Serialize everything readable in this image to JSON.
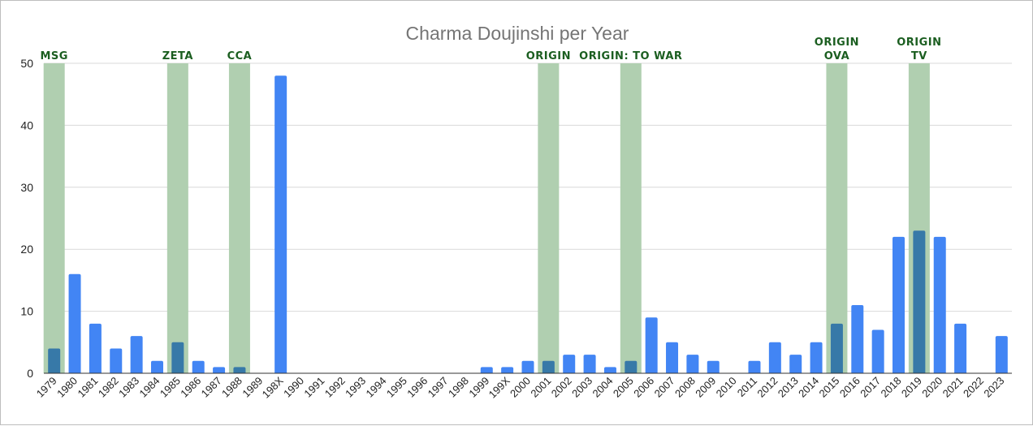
{
  "chart_data": {
    "type": "bar",
    "title": "Charma Doujinshi per Year",
    "xlabel": "",
    "ylabel": "",
    "ylim": [
      0,
      50
    ],
    "yticks": [
      0,
      10,
      20,
      30,
      40,
      50
    ],
    "grid": true,
    "legend": "none",
    "colors": {
      "bar": "#4285f4",
      "bar_highlighted": "#3779a8",
      "band": "#b0cfb0",
      "annotation": "#1b5e20",
      "title": "#757575"
    },
    "categories": [
      "1979",
      "1980",
      "1981",
      "1982",
      "1983",
      "1984",
      "1985",
      "1986",
      "1987",
      "1988",
      "1989",
      "198X",
      "1990",
      "1991",
      "1992",
      "1993",
      "1994",
      "1995",
      "1996",
      "1997",
      "1998",
      "1999",
      "199X",
      "2000",
      "2001",
      "2002",
      "2003",
      "2004",
      "2005",
      "2006",
      "2007",
      "2008",
      "2009",
      "2010",
      "2011",
      "2012",
      "2013",
      "2014",
      "2015",
      "2016",
      "2017",
      "2018",
      "2019",
      "2020",
      "2021",
      "2022",
      "2023"
    ],
    "values": [
      4,
      16,
      8,
      4,
      6,
      2,
      5,
      2,
      1,
      1,
      0,
      48,
      0,
      0,
      0,
      0,
      0,
      0,
      0,
      0,
      0,
      1,
      1,
      2,
      2,
      3,
      3,
      1,
      2,
      9,
      5,
      3,
      2,
      0,
      2,
      5,
      3,
      5,
      8,
      11,
      7,
      22,
      23,
      22,
      8,
      0,
      6
    ],
    "annotations": [
      {
        "category": "1979",
        "lines": [
          "MSG"
        ]
      },
      {
        "category": "1985",
        "lines": [
          "ZETA"
        ]
      },
      {
        "category": "1988",
        "lines": [
          "CCA"
        ]
      },
      {
        "category": "2001",
        "lines": [
          "ORIGIN"
        ]
      },
      {
        "category": "2005",
        "lines": [
          "ORIGIN: TO WAR"
        ]
      },
      {
        "category": "2015",
        "lines": [
          "ORIGIN",
          "OVA"
        ]
      },
      {
        "category": "2019",
        "lines": [
          "ORIGIN",
          "TV"
        ]
      }
    ]
  }
}
